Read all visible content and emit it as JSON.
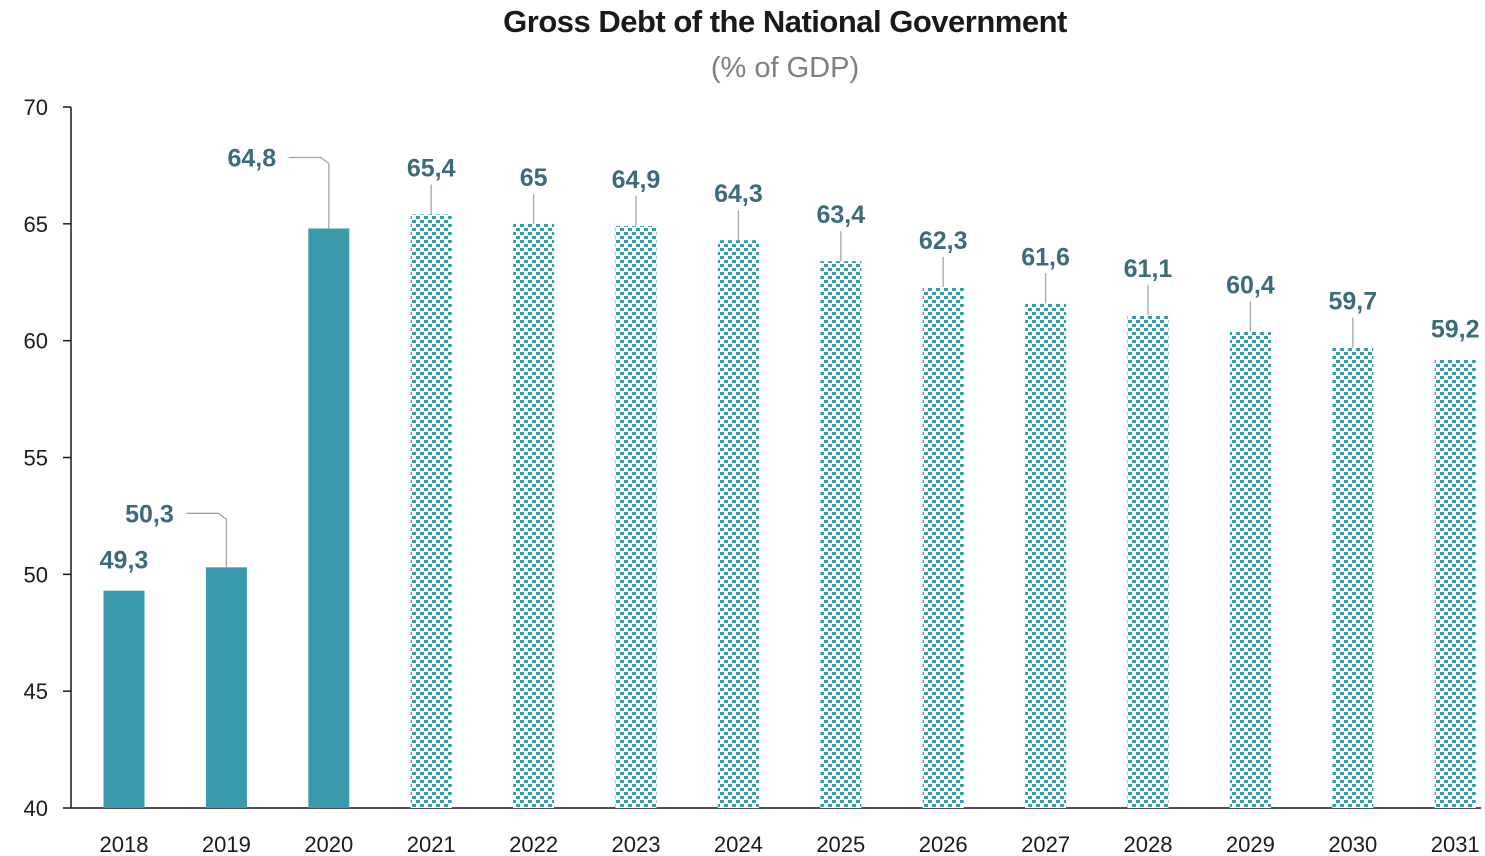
{
  "chart_data": {
    "type": "bar",
    "title": "Gross Debt of the National Government",
    "subtitle": "(% of GDP)",
    "xlabel": "",
    "ylabel": "",
    "categories": [
      "2018",
      "2019",
      "2020",
      "2021",
      "2022",
      "2023",
      "2024",
      "2025",
      "2026",
      "2027",
      "2028",
      "2029",
      "2030",
      "2031"
    ],
    "values": [
      49.3,
      50.3,
      64.8,
      65.4,
      65,
      64.9,
      64.3,
      63.4,
      62.3,
      61.6,
      61.1,
      60.4,
      59.7,
      59.2
    ],
    "data_labels": [
      "49,3",
      "50,3",
      "64,8",
      "65,4",
      "65",
      "64,9",
      "64,3",
      "63,4",
      "62,3",
      "61,6",
      "61,1",
      "60,4",
      "59,7",
      "59,2"
    ],
    "bar_styles": [
      "solid",
      "solid",
      "solid",
      "pattern",
      "pattern",
      "pattern",
      "pattern",
      "pattern",
      "pattern",
      "pattern",
      "pattern",
      "pattern",
      "pattern",
      "pattern"
    ],
    "ylim": [
      40,
      70
    ],
    "yticks": [
      40,
      45,
      50,
      55,
      60,
      65,
      70
    ],
    "grid": false,
    "legend": "none",
    "colors": {
      "bar": "#3a99ab",
      "pattern_dot": "#3a99ab",
      "data_label": "#3e6b79",
      "leader_line": "#a6a6a6",
      "axis": "#1a1a1a"
    }
  }
}
